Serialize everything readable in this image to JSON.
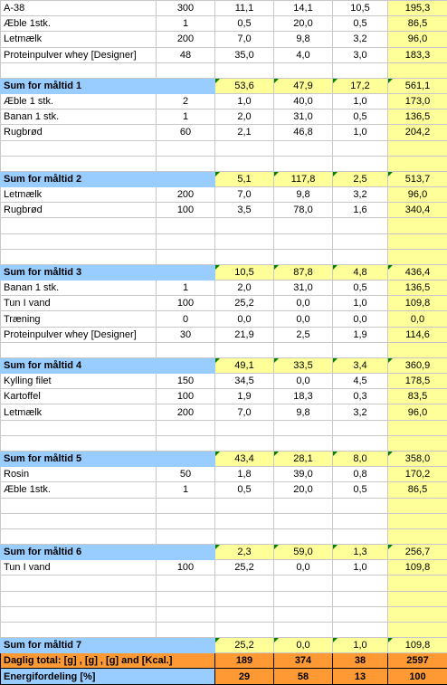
{
  "blocks": [
    {
      "items": [
        [
          "A-38",
          "300",
          "11,1",
          "14,1",
          "10,5",
          "195,3"
        ],
        [
          "Æble 1stk.",
          "1",
          "0,5",
          "20,0",
          "0,5",
          "86,5"
        ],
        [
          "Letmælk",
          "200",
          "7,0",
          "9,8",
          "3,2",
          "96,0"
        ],
        [
          "Proteinpulver whey [Designer]",
          "48",
          "35,0",
          "4,0",
          "3,0",
          "183,3"
        ]
      ],
      "sum": [
        "Sum for måltid 1",
        "53,6",
        "47,9",
        "17,2",
        "561,1"
      ]
    },
    {
      "items": [
        [
          "Æble 1 stk.",
          "2",
          "1,0",
          "40,0",
          "1,0",
          "173,0"
        ],
        [
          "Banan 1 stk.",
          "1",
          "2,0",
          "31,0",
          "0,5",
          "136,5"
        ],
        [
          "Rugbrød",
          "60",
          "2,1",
          "46,8",
          "1,0",
          "204,2"
        ]
      ],
      "sum": [
        "Sum for måltid 2",
        "5,1",
        "117,8",
        "2,5",
        "513,7"
      ]
    },
    {
      "items": [
        [
          "Letmælk",
          "200",
          "7,0",
          "9,8",
          "3,2",
          "96,0"
        ],
        [
          "Rugbrød",
          "100",
          "3,5",
          "78,0",
          "1,6",
          "340,4"
        ]
      ],
      "sum": [
        "Sum for måltid 3",
        "10,5",
        "87,8",
        "4,8",
        "436,4"
      ]
    },
    {
      "items": [
        [
          "Banan 1 stk.",
          "1",
          "2,0",
          "31,0",
          "0,5",
          "136,5"
        ],
        [
          "Tun I vand",
          "100",
          "25,2",
          "0,0",
          "1,0",
          "109,8"
        ],
        [
          "Træning",
          "0",
          "0,0",
          "0,0",
          "0,0",
          "0,0"
        ],
        [
          "Proteinpulver whey [Designer]",
          "30",
          "21,9",
          "2,5",
          "1,9",
          "114,6"
        ]
      ],
      "sum": [
        "Sum for måltid 4",
        "49,1",
        "33,5",
        "3,4",
        "360,9"
      ]
    },
    {
      "items": [
        [
          "Kylling filet",
          "150",
          "34,5",
          "0,0",
          "4,5",
          "178,5"
        ],
        [
          "Kartoffel",
          "100",
          "1,9",
          "18,3",
          "0,3",
          "83,5"
        ],
        [
          "Letmælk",
          "200",
          "7,0",
          "9,8",
          "3,2",
          "96,0"
        ]
      ],
      "sum": [
        "Sum for måltid 5",
        "43,4",
        "28,1",
        "8,0",
        "358,0"
      ]
    },
    {
      "items": [
        [
          "Rosin",
          "50",
          "1,8",
          "39,0",
          "0,8",
          "170,2"
        ],
        [
          "Æble 1stk.",
          "1",
          "0,5",
          "20,0",
          "0,5",
          "86,5"
        ]
      ],
      "sum": [
        "Sum for måltid 6",
        "2,3",
        "59,0",
        "1,3",
        "256,7"
      ]
    },
    {
      "items": [
        [
          "Tun I vand",
          "100",
          "25,2",
          "0,0",
          "1,0",
          "109,8"
        ]
      ],
      "sum": [
        "Sum for måltid 7",
        "25,2",
        "0,0",
        "1,0",
        "109,8"
      ]
    }
  ],
  "totals": [
    "Daglig total: [g] , [g] , [g] and [Kcal.]",
    "189",
    "374",
    "38",
    "2597"
  ],
  "energy": [
    "Energifordeling  [%]",
    "29",
    "58",
    "13",
    "100"
  ]
}
